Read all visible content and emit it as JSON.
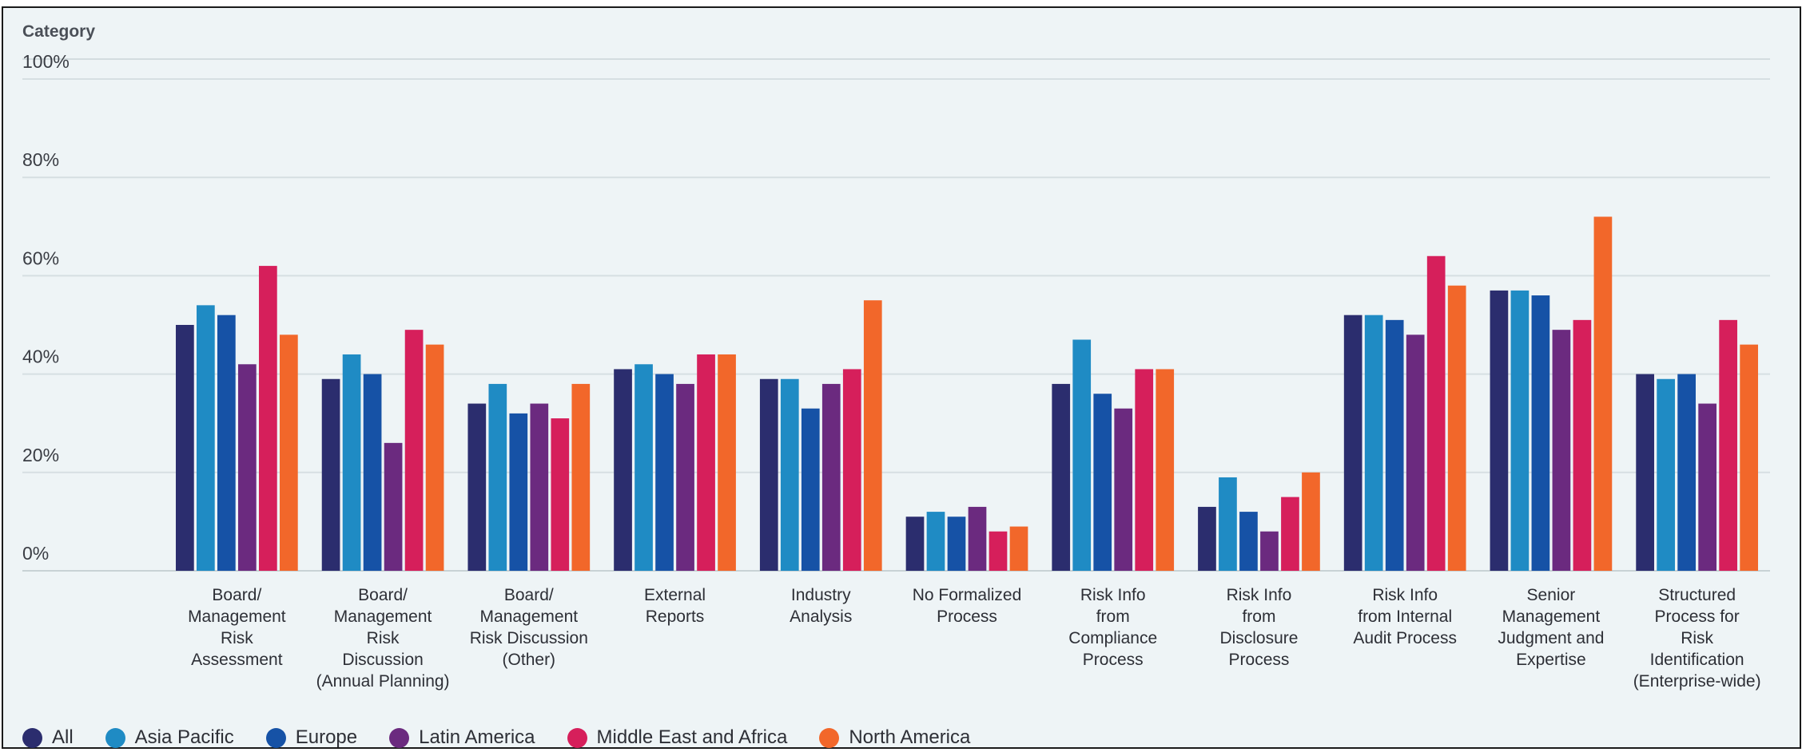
{
  "chart_data": {
    "type": "bar",
    "title": "Category",
    "ylim": [
      0,
      100
    ],
    "yticks": [
      "0%",
      "20%",
      "40%",
      "60%",
      "80%",
      "100%"
    ],
    "ytick_values": [
      0,
      20,
      40,
      60,
      80,
      100
    ],
    "grid": true,
    "legend_position": "bottom",
    "categories": [
      [
        "Board/",
        "Management",
        "Risk",
        "Assessment"
      ],
      [
        "Board/",
        "Management",
        "Risk",
        "Discussion",
        "(Annual Planning)"
      ],
      [
        "Board/",
        "Management",
        "Risk Discussion",
        "(Other)"
      ],
      [
        "External",
        "Reports"
      ],
      [
        "Industry",
        "Analysis"
      ],
      [
        "No Formalized",
        "Process"
      ],
      [
        "Risk Info",
        "from",
        "Compliance",
        "Process"
      ],
      [
        "Risk Info",
        "from",
        "Disclosure",
        "Process"
      ],
      [
        "Risk Info",
        "from Internal",
        "Audit Process"
      ],
      [
        "Senior",
        "Management",
        "Judgment and",
        "Expertise"
      ],
      [
        "Structured",
        "Process for",
        "Risk",
        "Identification",
        "(Enterprise-wide)"
      ]
    ],
    "series": [
      {
        "name": "All",
        "color": "#2b2d6e",
        "values": [
          50,
          39,
          34,
          41,
          39,
          11,
          38,
          13,
          52,
          57,
          40
        ]
      },
      {
        "name": "Asia Pacific",
        "color": "#1f8bc4",
        "values": [
          54,
          44,
          38,
          42,
          39,
          12,
          47,
          19,
          52,
          57,
          39
        ]
      },
      {
        "name": "Europe",
        "color": "#1652a6",
        "values": [
          52,
          40,
          32,
          40,
          33,
          11,
          36,
          12,
          51,
          56,
          40
        ]
      },
      {
        "name": "Latin America",
        "color": "#6b2a7f",
        "values": [
          42,
          26,
          34,
          38,
          38,
          13,
          33,
          8,
          48,
          49,
          34
        ]
      },
      {
        "name": "Middle East and Africa",
        "color": "#d61f5b",
        "values": [
          62,
          49,
          31,
          44,
          41,
          8,
          41,
          15,
          64,
          51,
          51
        ]
      },
      {
        "name": "North America",
        "color": "#f2672a",
        "values": [
          48,
          46,
          38,
          44,
          55,
          9,
          41,
          20,
          58,
          72,
          46
        ]
      }
    ]
  }
}
